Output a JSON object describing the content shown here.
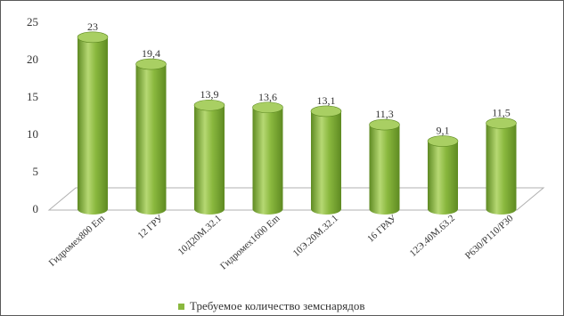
{
  "chart_data": {
    "type": "bar",
    "style": "3d-cylinder",
    "categories": [
      "Гидромех800 Em",
      "12 ГРУ",
      "10Д20М.32.1",
      "Гидромех1600 Em",
      "10Э.20М.32.1",
      "16 ГРАУ",
      "12Э.40М.63.2",
      "Р630/Р110/Р30"
    ],
    "series": [
      {
        "name": "Требуемое количество земснарядов",
        "values": [
          23,
          19.4,
          13.9,
          13.6,
          13.1,
          11.3,
          9.1,
          11.5
        ]
      }
    ],
    "data_labels": [
      "23",
      "19,4",
      "13,9",
      "13,6",
      "13,1",
      "11,3",
      "9,1",
      "11,5"
    ],
    "yticks": [
      "0",
      "5",
      "10",
      "15",
      "20",
      "25"
    ],
    "ylim": [
      0,
      25
    ],
    "grid": false,
    "legend_position": "bottom",
    "colors": {
      "bar": "#8ab83e",
      "bar_light": "#b6d873",
      "bar_dark": "#5e8a22",
      "top": "#a9cf63",
      "floor": "#ffffff",
      "floor_edge": "#b0b0b0"
    }
  }
}
